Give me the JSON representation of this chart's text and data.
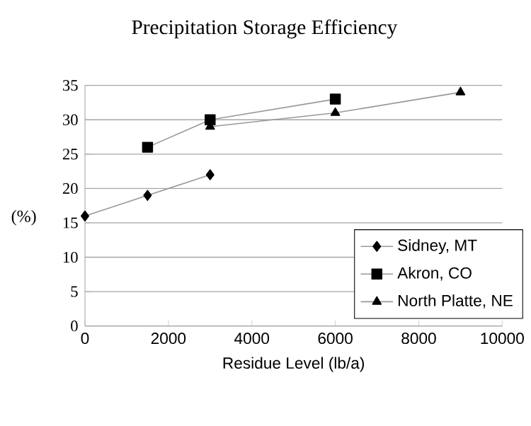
{
  "chart_data": {
    "type": "line",
    "title": "Precipitation Storage Efficiency",
    "xlabel": "Residue Level (lb/a)",
    "ylabel": "(%)",
    "xlim": [
      0,
      10000
    ],
    "xticks": [
      0,
      2000,
      4000,
      6000,
      8000,
      10000
    ],
    "ylim": [
      0,
      35
    ],
    "yticks": [
      0,
      5,
      10,
      15,
      20,
      25,
      30,
      35
    ],
    "grid": "y",
    "legend": "bottom right",
    "series": [
      {
        "name": "Sidney, MT",
        "color": "#000000",
        "marker": "diamond",
        "x": [
          0,
          1500,
          3000
        ],
        "values": [
          16,
          19,
          22
        ]
      },
      {
        "name": "Akron, CO",
        "color": "#000000",
        "marker": "square",
        "x": [
          1500,
          3000,
          6000
        ],
        "values": [
          26,
          30,
          33
        ]
      },
      {
        "name": "North Platte, NE",
        "color": "#000000",
        "marker": "triangle",
        "x": [
          3000,
          6000,
          9000
        ],
        "values": [
          29,
          31,
          34
        ]
      }
    ]
  }
}
